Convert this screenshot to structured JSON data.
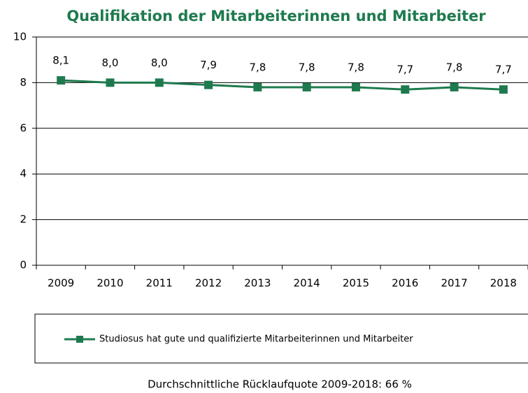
{
  "chart_data": {
    "type": "line",
    "title": "Qualifikation  der Mitarbeiterinnen  und Mitarbeiter",
    "categories": [
      "2009",
      "2010",
      "2011",
      "2012",
      "2013",
      "2014",
      "2015",
      "2016",
      "2017",
      "2018"
    ],
    "series": [
      {
        "name": "Studiosus hat gute und qualifizierte Mitarbeiterinnen und Mitarbeiter",
        "color": "#1e7a4e",
        "values": [
          8.1,
          8.0,
          8.0,
          7.9,
          7.8,
          7.8,
          7.8,
          7.7,
          7.8,
          7.7
        ],
        "value_labels": [
          "8,1",
          "8,0",
          "8,0",
          "7,9",
          "7,8",
          "7,8",
          "7,8",
          "7,7",
          "7,8",
          "7,7"
        ]
      }
    ],
    "ylim": [
      0,
      10
    ],
    "yticks": [
      0,
      2,
      4,
      6,
      8,
      10
    ],
    "grid": true,
    "footnote": "Durchschnittliche Rücklaufquote 2009-2018: 66 %"
  }
}
